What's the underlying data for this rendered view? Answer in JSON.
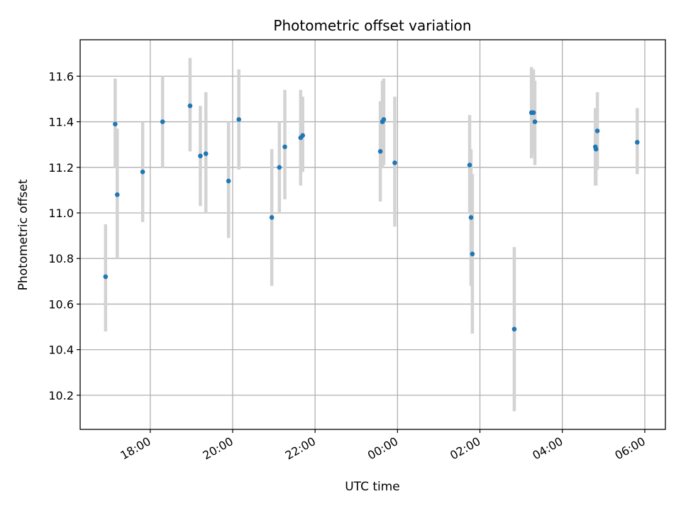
{
  "chart_data": {
    "type": "scatter",
    "title": "Photometric offset variation",
    "xlabel": "UTC time",
    "ylabel": "Photometric offset",
    "x_axis": "time",
    "x_ticks": [
      {
        "t": "1970-01-01T18:00:00Z",
        "label": "18:00"
      },
      {
        "t": "1970-01-01T20:00:00Z",
        "label": "20:00"
      },
      {
        "t": "1970-01-01T22:00:00Z",
        "label": "22:00"
      },
      {
        "t": "1970-01-02T00:00:00Z",
        "label": "00:00"
      },
      {
        "t": "1970-01-02T02:00:00Z",
        "label": "02:00"
      },
      {
        "t": "1970-01-02T04:00:00Z",
        "label": "04:00"
      },
      {
        "t": "1970-01-02T06:00:00Z",
        "label": "06:00"
      }
    ],
    "xlim": [
      "1970-01-01T16:18:00Z",
      "1970-01-02T06:30:00Z"
    ],
    "y_ticks": [
      10.2,
      10.4,
      10.6,
      10.8,
      11.0,
      11.2,
      11.4,
      11.6
    ],
    "ylim": [
      10.05,
      11.76
    ],
    "grid": true,
    "marker_color": "#1f77b4",
    "errorbar_color": "#d3d3d3",
    "points": [
      {
        "t": "1970-01-01T16:55:00Z",
        "y": 10.72,
        "lo": 10.48,
        "hi": 10.95
      },
      {
        "t": "1970-01-01T17:09:00Z",
        "y": 11.39,
        "lo": 11.2,
        "hi": 11.59
      },
      {
        "t": "1970-01-01T17:12:00Z",
        "y": 11.08,
        "lo": 10.8,
        "hi": 11.37
      },
      {
        "t": "1970-01-01T17:49:00Z",
        "y": 11.18,
        "lo": 10.96,
        "hi": 11.4
      },
      {
        "t": "1970-01-01T18:18:00Z",
        "y": 11.4,
        "lo": 11.2,
        "hi": 11.6
      },
      {
        "t": "1970-01-01T18:58:00Z",
        "y": 11.47,
        "lo": 11.27,
        "hi": 11.68
      },
      {
        "t": "1970-01-01T19:13:00Z",
        "y": 11.25,
        "lo": 11.03,
        "hi": 11.47
      },
      {
        "t": "1970-01-01T19:21:00Z",
        "y": 11.26,
        "lo": 11.0,
        "hi": 11.53
      },
      {
        "t": "1970-01-01T19:54:00Z",
        "y": 11.14,
        "lo": 10.89,
        "hi": 11.4
      },
      {
        "t": "1970-01-01T20:09:00Z",
        "y": 11.41,
        "lo": 11.19,
        "hi": 11.63
      },
      {
        "t": "1970-01-01T20:57:00Z",
        "y": 10.98,
        "lo": 10.68,
        "hi": 11.28
      },
      {
        "t": "1970-01-01T21:08:00Z",
        "y": 11.2,
        "lo": 11.0,
        "hi": 11.4
      },
      {
        "t": "1970-01-01T21:16:00Z",
        "y": 11.29,
        "lo": 11.06,
        "hi": 11.54
      },
      {
        "t": "1970-01-01T21:39:00Z",
        "y": 11.33,
        "lo": 11.12,
        "hi": 11.54
      },
      {
        "t": "1970-01-01T21:42:00Z",
        "y": 11.34,
        "lo": 11.18,
        "hi": 11.51
      },
      {
        "t": "1970-01-01T23:35:00Z",
        "y": 11.27,
        "lo": 11.05,
        "hi": 11.49
      },
      {
        "t": "1970-01-01T23:38:00Z",
        "y": 11.4,
        "lo": 11.2,
        "hi": 11.58
      },
      {
        "t": "1970-01-01T23:40:00Z",
        "y": 11.41,
        "lo": 11.21,
        "hi": 11.59
      },
      {
        "t": "1970-01-01T23:56:00Z",
        "y": 11.22,
        "lo": 10.94,
        "hi": 11.51
      },
      {
        "t": "1970-01-02T01:45:00Z",
        "y": 11.21,
        "lo": 11.0,
        "hi": 11.43
      },
      {
        "t": "1970-01-02T01:47:00Z",
        "y": 10.98,
        "lo": 10.68,
        "hi": 11.28
      },
      {
        "t": "1970-01-02T01:49:00Z",
        "y": 10.82,
        "lo": 10.47,
        "hi": 11.17
      },
      {
        "t": "1970-01-02T02:50:00Z",
        "y": 10.49,
        "lo": 10.13,
        "hi": 10.85
      },
      {
        "t": "1970-01-02T03:15:00Z",
        "y": 11.44,
        "lo": 11.24,
        "hi": 11.64
      },
      {
        "t": "1970-01-02T03:18:00Z",
        "y": 11.44,
        "lo": 11.26,
        "hi": 11.63
      },
      {
        "t": "1970-01-02T03:20:00Z",
        "y": 11.4,
        "lo": 11.21,
        "hi": 11.58
      },
      {
        "t": "1970-01-02T04:48:00Z",
        "y": 11.29,
        "lo": 11.12,
        "hi": 11.46
      },
      {
        "t": "1970-01-02T04:49:00Z",
        "y": 11.28,
        "lo": 11.12,
        "hi": 11.45
      },
      {
        "t": "1970-01-02T04:51:00Z",
        "y": 11.36,
        "lo": 11.19,
        "hi": 11.53
      },
      {
        "t": "1970-01-02T05:49:00Z",
        "y": 11.31,
        "lo": 11.17,
        "hi": 11.46
      }
    ]
  }
}
